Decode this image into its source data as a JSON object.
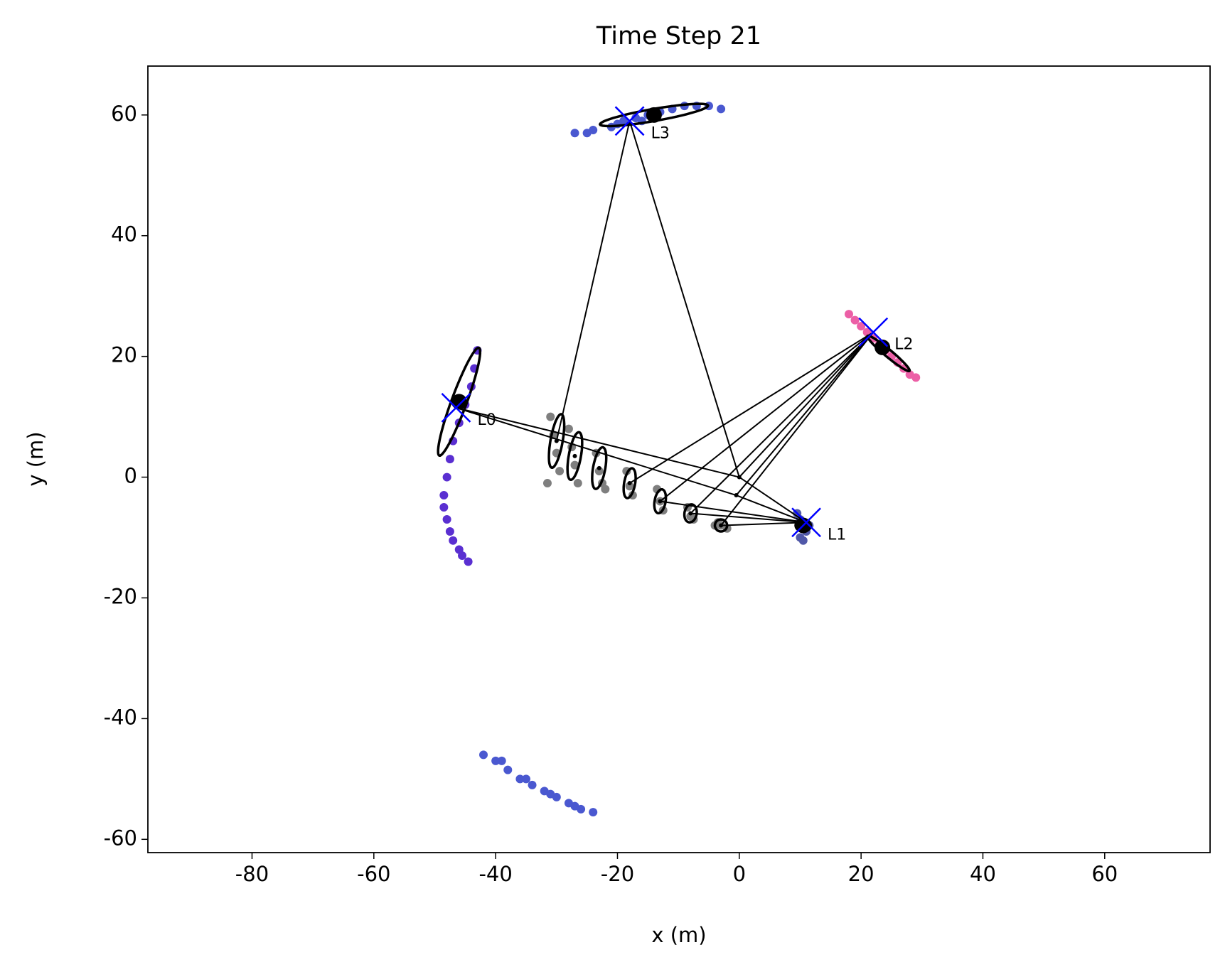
{
  "chart_data": {
    "type": "scatter",
    "title": "Time Step 21",
    "x_label": "x (m)",
    "y_label": "y (m)",
    "xlim": [
      -97.1,
      77.3
    ],
    "ylim": [
      -62.2,
      68.1
    ],
    "xticks": [
      -80,
      -60,
      -40,
      -20,
      0,
      20,
      40,
      60
    ],
    "yticks": [
      -60,
      -40,
      -20,
      0,
      20,
      40,
      60
    ],
    "series": [
      {
        "color": "#5a2fd1",
        "x": [
          -43,
          -43.5,
          -44,
          -45,
          -46,
          -47,
          -47.5,
          -48,
          -48.5,
          -48.5,
          -48,
          -47.5,
          -47,
          -46,
          -45.5,
          -44.5
        ],
        "values": [
          21,
          18,
          15,
          12,
          9,
          6,
          3,
          0,
          -3,
          -5,
          -7,
          -9,
          -10.5,
          -12,
          -13,
          -14
        ]
      },
      {
        "color": "#4a58d0",
        "x": [
          -27,
          -24,
          -21,
          -19,
          -17,
          -15,
          -13,
          -11,
          -9,
          -7,
          -5,
          -3,
          -25,
          -20,
          -16
        ],
        "values": [
          57,
          57.5,
          58,
          59,
          59.5,
          60,
          60.5,
          61,
          61.5,
          61.5,
          61.5,
          61,
          57,
          58.5,
          59
        ]
      },
      {
        "color": "#ec5fa6",
        "x": [
          18,
          19,
          20,
          21,
          22,
          23,
          24,
          25,
          26,
          27,
          28,
          29
        ],
        "values": [
          27,
          26,
          25,
          24,
          23,
          22,
          21,
          20,
          19,
          18,
          17,
          16.5
        ]
      },
      {
        "color": "#5058a8",
        "x": [
          9.5,
          10,
          10.5,
          11,
          11.5,
          10,
          10.5
        ],
        "values": [
          -6,
          -7,
          -8,
          -9,
          -8,
          -10,
          -10.5
        ]
      },
      {
        "color": "#4a58d0",
        "x": [
          -42,
          -40,
          -38,
          -36,
          -34,
          -32,
          -30,
          -28,
          -26,
          -24,
          -39,
          -35,
          -31,
          -27
        ],
        "values": [
          -46,
          -47,
          -48.5,
          -50,
          -51,
          -52,
          -53,
          -54,
          -55,
          -55.5,
          -47,
          -50,
          -52.5,
          -54.5
        ]
      },
      {
        "color": "#7f7f7f",
        "x": [
          -31,
          -30.5,
          -30,
          -29.5,
          -31.5,
          -28,
          -27.5,
          -27,
          -26.5,
          -23.5,
          -23,
          -22.5,
          -22,
          -18.5,
          -18,
          -17.5,
          -13.5,
          -13,
          -12.5,
          -8.5,
          -8,
          -7.5,
          -3.5,
          -3,
          -2,
          -4
        ],
        "values": [
          10,
          7,
          4,
          1,
          -1,
          8,
          5,
          2,
          -1,
          4,
          1,
          -1,
          -2,
          1,
          -1.5,
          -3,
          -2,
          -4,
          -5.5,
          -5,
          -6.5,
          -7,
          -7.5,
          -8,
          -8.5,
          -8
        ]
      }
    ],
    "poses": {
      "x": [
        -30,
        -27,
        -23,
        -18,
        -13,
        -8,
        -3,
        -0.5,
        0
      ],
      "y": [
        6,
        3.5,
        1.5,
        -1,
        -4,
        -6,
        -8,
        -3,
        0
      ]
    },
    "landmarks": {
      "labels": [
        "L0",
        "L1",
        "L2",
        "L3"
      ],
      "true_x": [
        -46.5,
        11,
        22,
        -18
      ],
      "true_y": [
        11.5,
        -7.5,
        24,
        59
      ],
      "est_x": [
        -46,
        10.5,
        23.5,
        -14
      ],
      "est_y": [
        12.5,
        -8,
        21.5,
        60
      ],
      "true_color": "#0000ff",
      "est_color": "#000000"
    },
    "edges": [
      [
        0,
        3
      ],
      [
        8,
        3
      ],
      [
        8,
        0
      ],
      [
        7,
        0
      ],
      [
        3,
        2
      ],
      [
        4,
        2
      ],
      [
        5,
        2
      ],
      [
        6,
        2
      ],
      [
        7,
        2
      ],
      [
        8,
        2
      ],
      [
        4,
        1
      ],
      [
        5,
        1
      ],
      [
        6,
        1
      ],
      [
        7,
        1
      ],
      [
        8,
        1
      ]
    ],
    "ellipses": [
      {
        "cx": -46,
        "cy": 12.5,
        "width": 19,
        "height": 2.5,
        "angle": 70
      },
      {
        "cx": -14,
        "cy": 60,
        "width": 18,
        "height": 2,
        "angle": 10
      },
      {
        "cx": 24.5,
        "cy": 20.5,
        "width": 9,
        "height": 1.2,
        "angle": -40
      },
      {
        "cx": 10.5,
        "cy": -8,
        "width": 2.5,
        "height": 2,
        "angle": 0
      },
      {
        "cx": -30,
        "cy": 6,
        "width": 9,
        "height": 2,
        "angle": 80
      },
      {
        "cx": -27,
        "cy": 3.5,
        "width": 8,
        "height": 2,
        "angle": 80
      },
      {
        "cx": -23,
        "cy": 1.5,
        "width": 7,
        "height": 2,
        "angle": 80
      },
      {
        "cx": -18,
        "cy": -1,
        "width": 5,
        "height": 1.8,
        "angle": 80
      },
      {
        "cx": -13,
        "cy": -4,
        "width": 4,
        "height": 1.8,
        "angle": 80
      },
      {
        "cx": -8,
        "cy": -6,
        "width": 3,
        "height": 2,
        "angle": 80
      },
      {
        "cx": -3,
        "cy": -8,
        "width": 2,
        "height": 2,
        "angle": 80
      }
    ]
  }
}
